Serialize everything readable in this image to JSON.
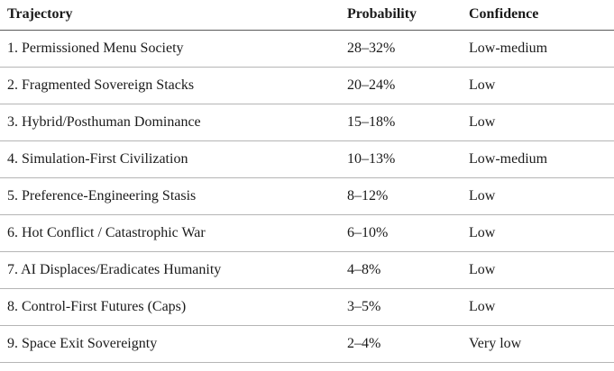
{
  "colors": {
    "background": "#ffffff",
    "text": "#1a1a1a",
    "header_rule": "#5a5a5a",
    "row_rule": "#b5b5b5"
  },
  "table": {
    "columns": [
      {
        "label": "Trajectory"
      },
      {
        "label": "Probability"
      },
      {
        "label": "Confidence"
      }
    ],
    "rows": [
      {
        "trajectory": "1. Permissioned Menu Society",
        "probability": "28–32%",
        "confidence": "Low-medium"
      },
      {
        "trajectory": "2. Fragmented Sovereign Stacks",
        "probability": "20–24%",
        "confidence": "Low"
      },
      {
        "trajectory": "3. Hybrid/Posthuman Dominance",
        "probability": "15–18%",
        "confidence": "Low"
      },
      {
        "trajectory": "4. Simulation-First Civilization",
        "probability": "10–13%",
        "confidence": "Low-medium"
      },
      {
        "trajectory": "5. Preference-Engineering Stasis",
        "probability": "8–12%",
        "confidence": "Low"
      },
      {
        "trajectory": "6. Hot Conflict / Catastrophic War",
        "probability": "6–10%",
        "confidence": "Low"
      },
      {
        "trajectory": "7. AI Displaces/Eradicates Humanity",
        "probability": "4–8%",
        "confidence": "Low"
      },
      {
        "trajectory": "8. Control-First Futures (Caps)",
        "probability": "3–5%",
        "confidence": "Low"
      },
      {
        "trajectory": "9. Space Exit Sovereignty",
        "probability": "2–4%",
        "confidence": "Very low"
      }
    ]
  }
}
